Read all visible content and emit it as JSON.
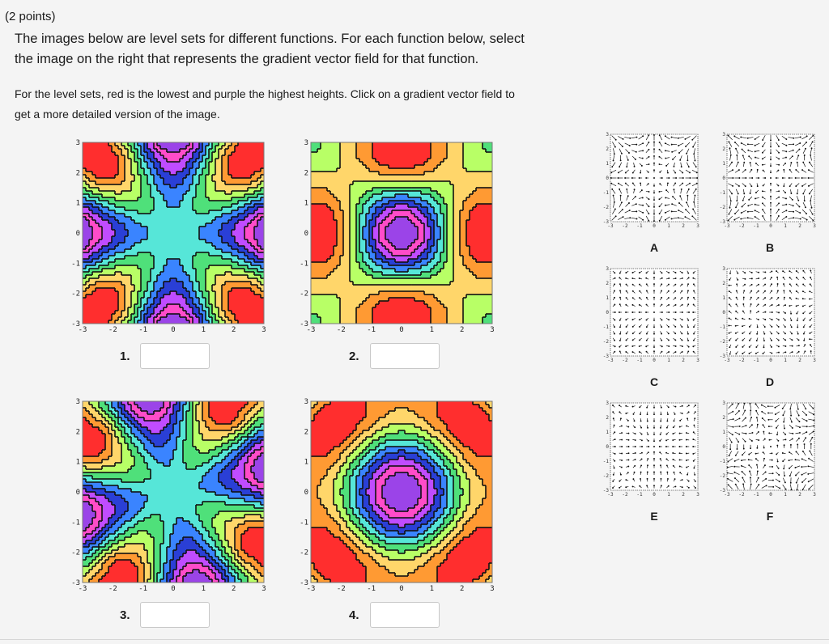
{
  "header": {
    "points": "(2 points)",
    "question_line1": "The images below are level sets for different functions. For each function below, select",
    "question_line2": "the image on the right that represents the gradient vector field for that function.",
    "note_line1": "For the level sets, red is the lowest and purple the highest heights. Click on a gradient vector field to",
    "note_line2": "get a more detailed version of the image."
  },
  "axis_ticks": [
    "-3",
    "-2",
    "-1",
    "0",
    "1",
    "2",
    "3"
  ],
  "level_sets": [
    {
      "label": "1.",
      "answer": ""
    },
    {
      "label": "2.",
      "answer": ""
    },
    {
      "label": "3.",
      "answer": ""
    },
    {
      "label": "4.",
      "answer": ""
    }
  ],
  "vector_fields": [
    {
      "label": "A"
    },
    {
      "label": "B"
    },
    {
      "label": "C"
    },
    {
      "label": "D"
    },
    {
      "label": "E"
    },
    {
      "label": "F"
    }
  ],
  "colors": {
    "palette": [
      "#ff2e2e",
      "#ff9a33",
      "#ffd66a",
      "#b8ff66",
      "#4fe07a",
      "#56e6d8",
      "#3a84ff",
      "#2a3fd6",
      "#c04cff",
      "#ff4cc9",
      "#9b44e8"
    ]
  }
}
